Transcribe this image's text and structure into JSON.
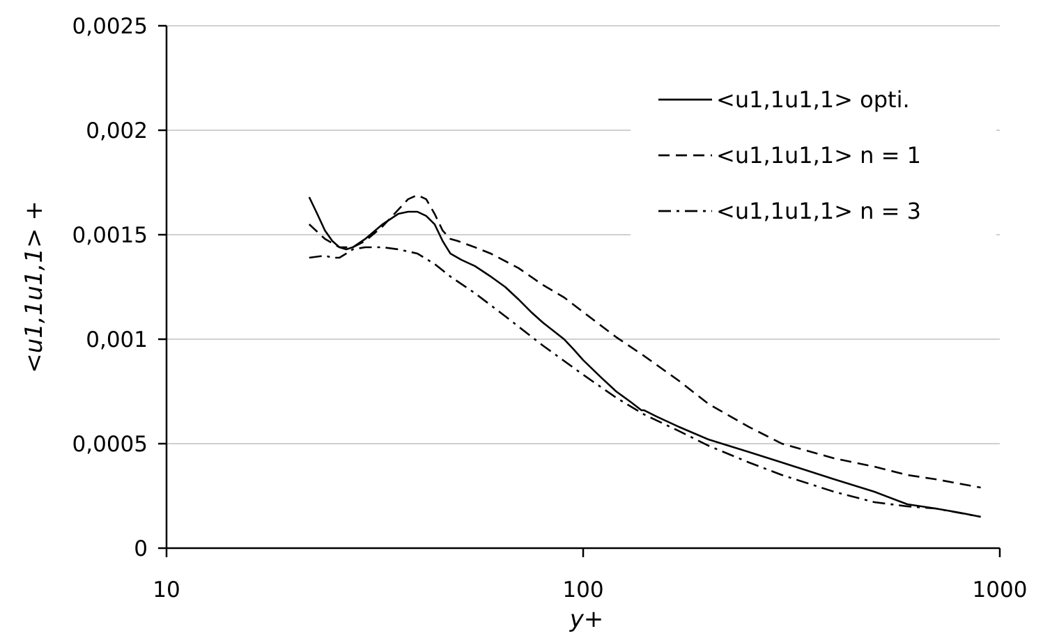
{
  "chart_data": {
    "type": "line",
    "title": "",
    "xlabel": "y+",
    "ylabel": "<u1,1u1,1> +",
    "xscale": "log",
    "xlim": [
      10,
      1000
    ],
    "ylim": [
      0,
      0.0025
    ],
    "xticks": [
      10,
      100,
      1000
    ],
    "xtick_labels": [
      "10",
      "100",
      "1000"
    ],
    "yticks": [
      0,
      0.0005,
      0.001,
      0.0015,
      0.002,
      0.0025
    ],
    "ytick_labels": [
      "0",
      "0,0005",
      "0,001",
      "0,0015",
      "0,002",
      "0,0025"
    ],
    "grid": "horizontal",
    "legend_position": "top-right",
    "series": [
      {
        "name": "<u1,1u1,1> opti.",
        "style": "solid",
        "color": "#000000",
        "x": [
          22,
          23,
          24,
          25,
          26,
          27,
          28,
          30,
          33,
          36,
          38,
          40,
          42,
          44,
          46,
          48,
          51,
          55,
          60,
          65,
          70,
          75,
          80,
          90,
          95,
          100,
          110,
          120,
          130,
          138,
          140,
          150,
          170,
          200,
          250,
          300,
          400,
          500,
          600,
          700,
          800,
          900
        ],
        "y": [
          0.00168,
          0.0016,
          0.00152,
          0.00147,
          0.00144,
          0.00143,
          0.00144,
          0.00148,
          0.00155,
          0.0016,
          0.00161,
          0.00161,
          0.00159,
          0.00155,
          0.00147,
          0.00141,
          0.00138,
          0.00135,
          0.0013,
          0.00125,
          0.00119,
          0.00113,
          0.00108,
          0.001,
          0.00095,
          0.0009,
          0.00082,
          0.00075,
          0.0007,
          0.00066,
          0.00066,
          0.00063,
          0.00058,
          0.00052,
          0.00046,
          0.00041,
          0.00033,
          0.00027,
          0.00021,
          0.00019,
          0.00017,
          0.00015
        ]
      },
      {
        "name": "<u1,1u1,1> n = 1",
        "style": "dashed",
        "color": "#000000",
        "x": [
          22,
          24,
          26,
          28,
          30,
          33,
          36,
          38,
          40,
          42,
          44,
          46,
          48,
          50,
          55,
          60,
          70,
          80,
          90,
          100,
          120,
          140,
          170,
          200,
          250,
          300,
          400,
          500,
          600,
          700,
          900
        ],
        "y": [
          0.00155,
          0.00148,
          0.00144,
          0.00144,
          0.00147,
          0.00154,
          0.00162,
          0.00167,
          0.00169,
          0.00167,
          0.0016,
          0.00152,
          0.00148,
          0.00147,
          0.00144,
          0.00141,
          0.00134,
          0.00126,
          0.0012,
          0.00113,
          0.00101,
          0.00092,
          0.0008,
          0.00069,
          0.00058,
          0.0005,
          0.00043,
          0.00039,
          0.00035,
          0.00033,
          0.00029
        ]
      },
      {
        "name": "<u1,1u1,1> n = 3",
        "style": "dashdot",
        "color": "#000000",
        "x": [
          22,
          24,
          25,
          26,
          27,
          28,
          30,
          33,
          36,
          40,
          44,
          48,
          55,
          65,
          80,
          100,
          120,
          140,
          170,
          200,
          250,
          300,
          400,
          500,
          600,
          700,
          900
        ],
        "y": [
          0.00139,
          0.0014,
          0.00139,
          0.00139,
          0.00141,
          0.00143,
          0.00144,
          0.00144,
          0.00143,
          0.00141,
          0.00136,
          0.0013,
          0.00122,
          0.00111,
          0.00097,
          0.00083,
          0.00072,
          0.00064,
          0.00056,
          0.00049,
          0.00041,
          0.00035,
          0.00027,
          0.00022,
          0.0002,
          0.00019,
          0.00015
        ]
      }
    ]
  }
}
